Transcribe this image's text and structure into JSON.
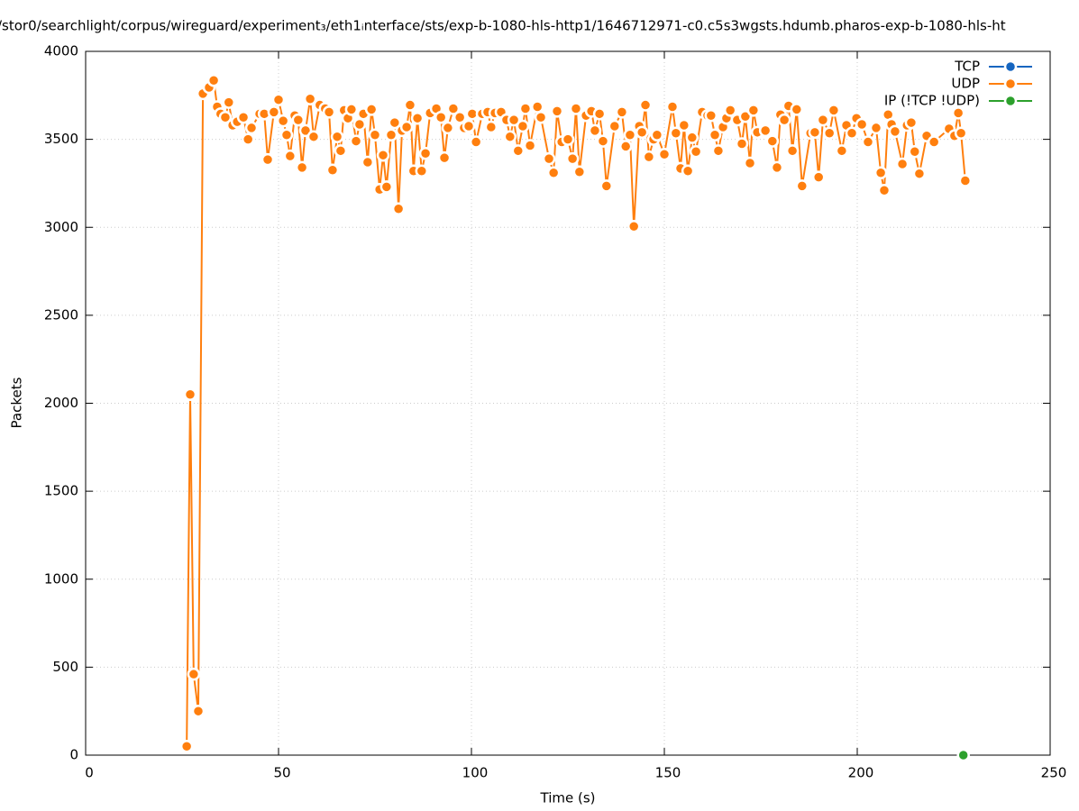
{
  "chart_data": {
    "type": "line",
    "title": "/stor0/searchlight/corpus/wireguard/experiment₃/eth1ᵢnterface/sts/exp-b-1080-hls-http1/1646712971-c0.c5s3wgsts.hdumb.pharos-exp-b-1080-hls-ht",
    "xlabel": "Time (s)",
    "ylabel": "Packets",
    "xlim": [
      0,
      250
    ],
    "xticks": [
      0,
      50,
      100,
      150,
      200,
      250
    ],
    "ylim": [
      0,
      4000
    ],
    "yticks": [
      0,
      500,
      1000,
      1500,
      2000,
      2500,
      3000,
      3500,
      4000
    ],
    "grid": true,
    "legend": "top-right",
    "series": [
      {
        "name": "TCP",
        "color": "#1565c0",
        "x": [],
        "values": []
      },
      {
        "name": "UDP",
        "color": "#ff7f0e",
        "x": [
          26.2,
          27.1,
          28.0,
          29.2,
          30.4,
          32.0,
          33.2,
          34.1,
          35.0,
          36.2,
          37.1,
          38.1,
          39.3,
          40.9,
          42.1,
          43.0,
          45.1,
          46.3,
          47.2,
          48.8,
          50.0,
          51.2,
          52.1,
          53.0,
          54.2,
          55.1,
          56.1,
          57.0,
          58.2,
          59.1,
          60.7,
          62.1,
          63.1,
          64.0,
          65.2,
          66.1,
          67.0,
          68.0,
          68.9,
          70.1,
          71.0,
          72.0,
          73.1,
          74.1,
          75.0,
          76.2,
          77.1,
          78.0,
          79.2,
          80.1,
          81.1,
          82.0,
          83.2,
          84.1,
          85.0,
          86.0,
          87.1,
          88.1,
          89.3,
          90.9,
          92.1,
          93.0,
          93.9,
          95.3,
          97.0,
          98.1,
          99.3,
          100.2,
          101.2,
          102.8,
          104.2,
          105.1,
          106.1,
          107.7,
          109.1,
          110.0,
          111.0,
          112.1,
          113.3,
          114.0,
          115.2,
          117.1,
          118.0,
          120.1,
          121.3,
          122.2,
          123.4,
          125.0,
          126.2,
          127.1,
          128.0,
          129.7,
          131.1,
          132.0,
          133.2,
          134.1,
          135.0,
          137.1,
          139.0,
          140.0,
          141.1,
          142.1,
          143.5,
          144.2,
          145.1,
          146.0,
          147.2,
          148.1,
          150.0,
          152.1,
          153.0,
          154.2,
          155.1,
          156.1,
          157.2,
          158.2,
          159.8,
          161.2,
          162.1,
          163.1,
          164.0,
          165.2,
          166.1,
          167.1,
          168.9,
          170.1,
          171.0,
          172.2,
          173.1,
          174.1,
          176.2,
          178.0,
          179.2,
          180.1,
          181.1,
          182.2,
          183.2,
          184.3,
          185.7,
          187.9,
          189.0,
          190.0,
          191.1,
          192.8,
          193.9,
          196.0,
          197.2,
          198.6,
          199.8,
          201.2,
          202.8,
          204.9,
          206.1,
          207.0,
          208.0,
          208.9,
          209.8,
          211.7,
          212.9,
          214.0,
          214.9,
          216.1,
          218.0,
          219.9,
          223.8,
          225.2,
          226.2,
          226.9,
          228.0
        ],
        "values": [
          50,
          2050,
          460,
          250,
          3760,
          3795,
          3835,
          3685,
          3645,
          3625,
          3710,
          3580,
          3600,
          3625,
          3500,
          3565,
          3645,
          3645,
          3385,
          3655,
          3725,
          3605,
          3525,
          3405,
          3635,
          3610,
          3340,
          3550,
          3730,
          3515,
          3695,
          3675,
          3655,
          3325,
          3515,
          3435,
          3665,
          3620,
          3670,
          3490,
          3585,
          3645,
          3370,
          3670,
          3525,
          3215,
          3410,
          3230,
          3525,
          3595,
          3105,
          3550,
          3570,
          3695,
          3320,
          3620,
          3320,
          3420,
          3650,
          3675,
          3625,
          3395,
          3565,
          3675,
          3625,
          3565,
          3575,
          3645,
          3485,
          3645,
          3655,
          3570,
          3650,
          3655,
          3610,
          3515,
          3610,
          3435,
          3575,
          3675,
          3465,
          3685,
          3625,
          3390,
          3310,
          3660,
          3485,
          3500,
          3390,
          3675,
          3315,
          3635,
          3660,
          3550,
          3645,
          3490,
          3235,
          3575,
          3655,
          3460,
          3525,
          3005,
          3575,
          3540,
          3695,
          3400,
          3500,
          3525,
          3415,
          3685,
          3535,
          3335,
          3580,
          3320,
          3510,
          3430,
          3655,
          3635,
          3635,
          3525,
          3435,
          3570,
          3620,
          3665,
          3610,
          3475,
          3630,
          3365,
          3665,
          3540,
          3550,
          3490,
          3340,
          3640,
          3610,
          3690,
          3435,
          3670,
          3235,
          3535,
          3540,
          3285,
          3610,
          3535,
          3665,
          3435,
          3580,
          3535,
          3620,
          3585,
          3485,
          3565,
          3310,
          3210,
          3640,
          3585,
          3545,
          3360,
          3580,
          3595,
          3430,
          3305,
          3520,
          3485,
          3560,
          3520,
          3650,
          3535,
          3265
        ]
      },
      {
        "name": "IP (!TCP  !UDP)",
        "color": "#2ca02c",
        "x": [
          227.5
        ],
        "values": [
          0
        ]
      }
    ]
  }
}
